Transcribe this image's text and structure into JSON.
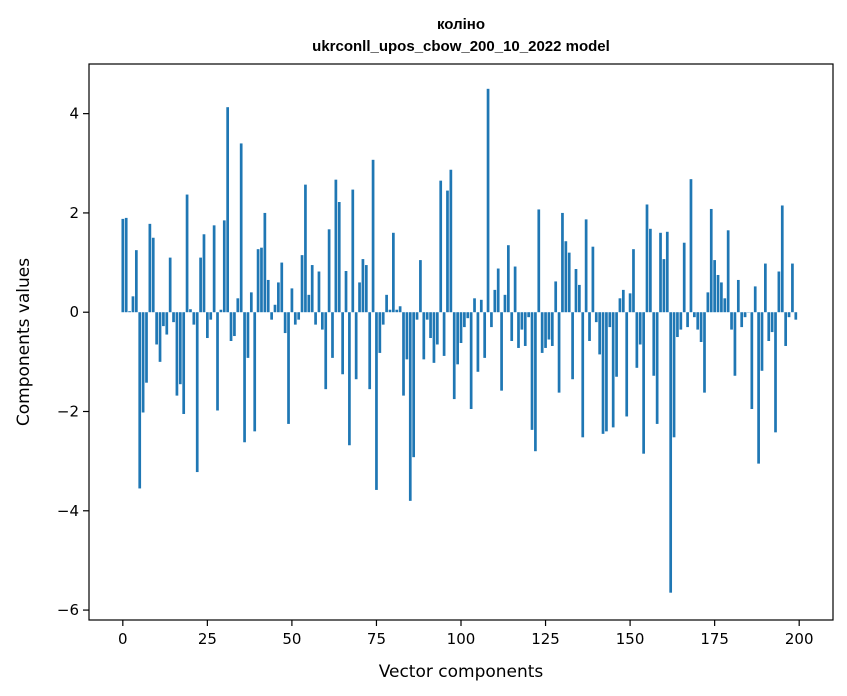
{
  "chart_data": {
    "type": "bar",
    "title": "коліно",
    "subtitle": "ukrconll_upos_cbow_200_10_2022 model",
    "xlabel": "Vector components",
    "ylabel": "Components values",
    "xlim": [
      -10,
      210
    ],
    "ylim": [
      -6.2,
      5
    ],
    "xticks": [
      0,
      25,
      50,
      75,
      100,
      125,
      150,
      175,
      200
    ],
    "xtick_labels": [
      "0",
      "25",
      "50",
      "75",
      "100",
      "125",
      "150",
      "175",
      "200"
    ],
    "yticks": [
      -6,
      -4,
      -2,
      0,
      2,
      4
    ],
    "ytick_labels": [
      "−6",
      "−4",
      "−2",
      "0",
      "2",
      "4"
    ],
    "bar_color": "#1f77b4",
    "grid": false,
    "legend": false,
    "series": [
      {
        "values": [
          1.88,
          1.9,
          0.02,
          0.32,
          1.25,
          -3.55,
          -2.02,
          -1.42,
          1.78,
          1.5,
          -0.65,
          -1.0,
          -0.28,
          -0.45,
          1.1,
          -0.2,
          -1.68,
          -1.45,
          -2.05,
          2.37,
          0.06,
          -0.25,
          -3.22,
          1.1,
          1.57,
          -0.52,
          -0.15,
          1.75,
          -1.98,
          0.05,
          1.85,
          4.13,
          -0.58,
          -0.48,
          0.28,
          3.4,
          -2.62,
          -0.92,
          0.4,
          -2.4,
          1.27,
          1.3,
          2.0,
          0.65,
          -0.15,
          0.15,
          0.6,
          1.0,
          -0.42,
          -2.25,
          0.48,
          -0.25,
          -0.15,
          1.15,
          2.57,
          0.35,
          0.95,
          -0.25,
          0.82,
          -0.35,
          -1.55,
          1.67,
          -0.92,
          2.67,
          2.22,
          -1.25,
          0.83,
          -2.68,
          2.47,
          -1.35,
          0.6,
          1.07,
          0.95,
          -1.55,
          3.07,
          -3.58,
          -0.82,
          -0.25,
          0.35,
          0.05,
          1.6,
          0.05,
          0.12,
          -1.68,
          -0.95,
          -3.8,
          -2.92,
          -0.15,
          1.05,
          -0.95,
          -0.15,
          -0.52,
          -1.02,
          -0.65,
          2.65,
          -0.88,
          2.45,
          2.87,
          -1.75,
          -1.05,
          -0.62,
          -0.3,
          -0.12,
          -1.95,
          0.28,
          -1.2,
          0.25,
          -0.92,
          4.5,
          -0.3,
          0.45,
          0.88,
          -1.58,
          0.35,
          1.35,
          -0.58,
          0.92,
          -0.72,
          -0.35,
          -0.68,
          -0.1,
          -2.37,
          -2.8,
          2.07,
          -0.82,
          -0.72,
          -0.55,
          -0.68,
          0.62,
          -1.62,
          2.0,
          1.43,
          1.2,
          -1.35,
          0.87,
          0.55,
          -2.52,
          1.87,
          -0.58,
          1.32,
          -0.2,
          -0.85,
          -2.45,
          -2.4,
          -0.3,
          -2.32,
          -1.3,
          0.28,
          0.45,
          -2.1,
          0.38,
          1.27,
          -1.12,
          -0.65,
          -2.85,
          2.17,
          1.68,
          -1.28,
          -2.25,
          1.6,
          1.07,
          1.62,
          -5.65,
          -2.52,
          -0.5,
          -0.35,
          1.4,
          -0.3,
          2.68,
          -0.1,
          -0.35,
          -0.6,
          -1.62,
          0.4,
          2.08,
          1.05,
          0.75,
          0.6,
          0.28,
          1.65,
          -0.35,
          -1.28,
          0.65,
          -0.3,
          -0.1,
          0.0,
          -1.95,
          0.52,
          -3.05,
          -1.18,
          0.98,
          -0.58,
          -0.4,
          -2.42,
          0.82,
          2.15,
          -0.68,
          -0.1,
          0.98,
          -0.15
        ]
      }
    ]
  }
}
